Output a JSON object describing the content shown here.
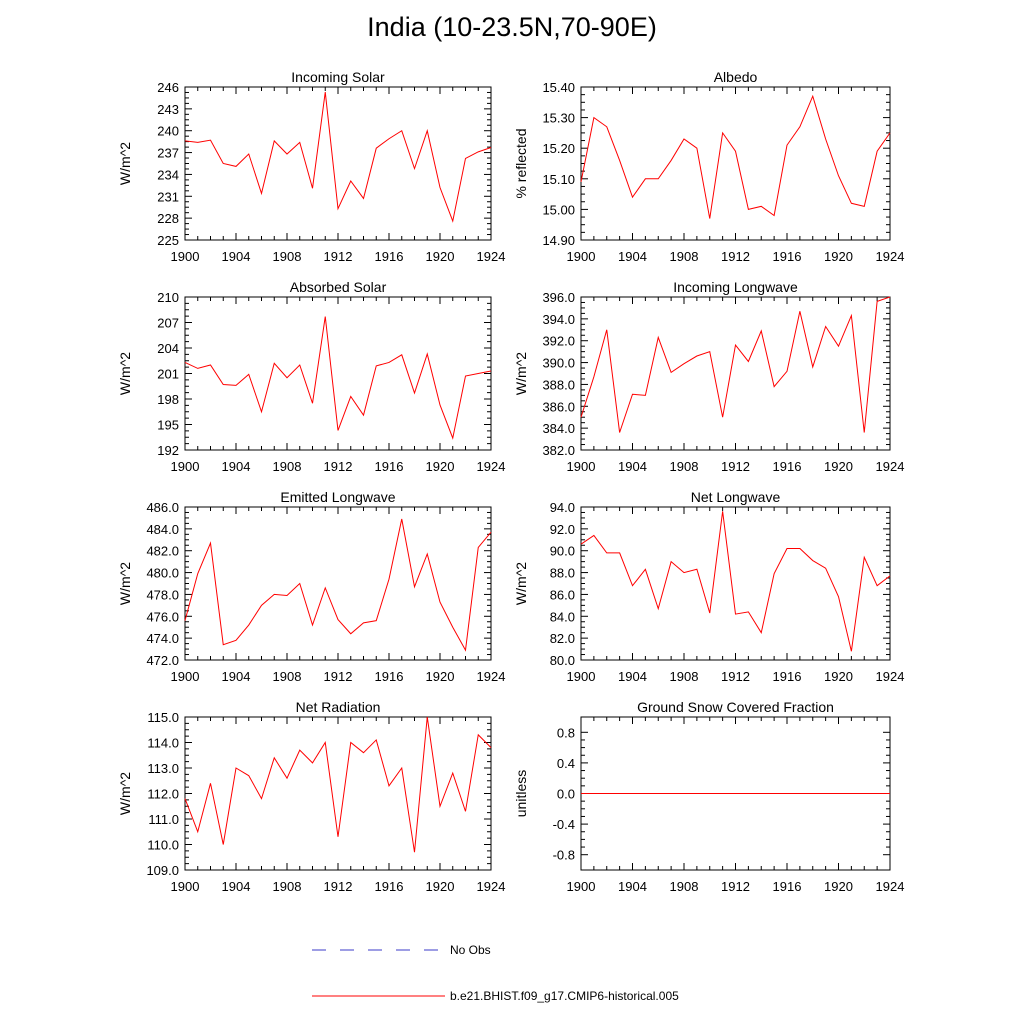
{
  "title": "India (10-23.5N,70-90E)",
  "colors": {
    "model": "#ff0000",
    "obs": "#3b3bc8",
    "axis": "#000000"
  },
  "legend": {
    "obs_label": "No Obs",
    "model_label": "b.e21.BHIST.f09_g17.CMIP6-historical.005"
  },
  "chart_data": [
    {
      "type": "line",
      "title": "Incoming Solar",
      "ylabel": "W/m^2",
      "xlim": [
        1900,
        1924
      ],
      "ylim": [
        225,
        246
      ],
      "xticks": [
        1900,
        1904,
        1908,
        1912,
        1916,
        1920,
        1924
      ],
      "xtick_labels": [
        "1900",
        "1904",
        "1908",
        "1912",
        "1916",
        "1920",
        "1924"
      ],
      "yticks": [
        225,
        228,
        231,
        234,
        237,
        240,
        243,
        246
      ],
      "ytick_labels": [
        "225",
        "228",
        "231",
        "234",
        "237",
        "240",
        "243",
        "246"
      ],
      "series": [
        {
          "name": "b.e21.BHIST.f09_g17.CMIP6-historical.005",
          "x": [
            1900,
            1901,
            1902,
            1903,
            1904,
            1905,
            1906,
            1907,
            1908,
            1909,
            1910,
            1911,
            1912,
            1913,
            1914,
            1915,
            1916,
            1917,
            1918,
            1919,
            1920,
            1921,
            1922,
            1923,
            1924
          ],
          "y": [
            238.6,
            238.4,
            238.7,
            235.5,
            235.1,
            236.8,
            231.4,
            238.6,
            236.8,
            238.4,
            232.1,
            245.3,
            229.3,
            233.1,
            230.7,
            237.6,
            238.9,
            240.0,
            234.8,
            240.0,
            232.2,
            227.6,
            236.2,
            237.1,
            237.7
          ]
        }
      ]
    },
    {
      "type": "line",
      "title": "Albedo",
      "ylabel": "% reflected",
      "xlim": [
        1900,
        1924
      ],
      "ylim": [
        14.9,
        15.4
      ],
      "xticks": [
        1900,
        1904,
        1908,
        1912,
        1916,
        1920,
        1924
      ],
      "xtick_labels": [
        "1900",
        "1904",
        "1908",
        "1912",
        "1916",
        "1920",
        "1924"
      ],
      "yticks": [
        14.9,
        15.0,
        15.1,
        15.2,
        15.3,
        15.4
      ],
      "ytick_labels": [
        "14.90",
        "15.00",
        "15.10",
        "15.20",
        "15.30",
        "15.40"
      ],
      "series": [
        {
          "name": "b.e21.BHIST.f09_g17.CMIP6-historical.005",
          "x": [
            1900,
            1901,
            1902,
            1903,
            1904,
            1905,
            1906,
            1907,
            1908,
            1909,
            1910,
            1911,
            1912,
            1913,
            1914,
            1915,
            1916,
            1917,
            1918,
            1919,
            1920,
            1921,
            1922,
            1923,
            1924
          ],
          "y": [
            15.09,
            15.3,
            15.27,
            15.16,
            15.04,
            15.1,
            15.1,
            15.16,
            15.23,
            15.2,
            14.97,
            15.25,
            15.19,
            15.0,
            15.01,
            14.98,
            15.21,
            15.27,
            15.37,
            15.23,
            15.11,
            15.02,
            15.01,
            15.19,
            15.25
          ]
        }
      ]
    },
    {
      "type": "line",
      "title": "Absorbed Solar",
      "ylabel": "W/m^2",
      "xlim": [
        1900,
        1924
      ],
      "ylim": [
        192,
        210
      ],
      "xticks": [
        1900,
        1904,
        1908,
        1912,
        1916,
        1920,
        1924
      ],
      "xtick_labels": [
        "1900",
        "1904",
        "1908",
        "1912",
        "1916",
        "1920",
        "1924"
      ],
      "yticks": [
        192,
        195,
        198,
        201,
        204,
        207,
        210
      ],
      "ytick_labels": [
        "192",
        "195",
        "198",
        "201",
        "204",
        "207",
        "210"
      ],
      "series": [
        {
          "name": "b.e21.BHIST.f09_g17.CMIP6-historical.005",
          "x": [
            1900,
            1901,
            1902,
            1903,
            1904,
            1905,
            1906,
            1907,
            1908,
            1909,
            1910,
            1911,
            1912,
            1913,
            1914,
            1915,
            1916,
            1917,
            1918,
            1919,
            1920,
            1921,
            1922,
            1923,
            1924
          ],
          "y": [
            202.3,
            201.6,
            202.0,
            199.7,
            199.6,
            200.9,
            196.5,
            202.2,
            200.5,
            202.0,
            197.5,
            207.7,
            194.3,
            198.3,
            196.1,
            201.9,
            202.3,
            203.2,
            198.7,
            203.3,
            197.3,
            193.4,
            200.7,
            201.0,
            201.3
          ]
        }
      ]
    },
    {
      "type": "line",
      "title": "Incoming Longwave",
      "ylabel": "W/m^2",
      "xlim": [
        1900,
        1924
      ],
      "ylim": [
        382,
        396
      ],
      "xticks": [
        1900,
        1904,
        1908,
        1912,
        1916,
        1920,
        1924
      ],
      "xtick_labels": [
        "1900",
        "1904",
        "1908",
        "1912",
        "1916",
        "1920",
        "1924"
      ],
      "yticks": [
        382,
        384,
        386,
        388,
        390,
        392,
        394,
        396
      ],
      "ytick_labels": [
        "382.0",
        "384.0",
        "386.0",
        "388.0",
        "390.0",
        "392.0",
        "394.0",
        "396.0"
      ],
      "series": [
        {
          "name": "b.e21.BHIST.f09_g17.CMIP6-historical.005",
          "x": [
            1900,
            1901,
            1902,
            1903,
            1904,
            1905,
            1906,
            1907,
            1908,
            1909,
            1910,
            1911,
            1912,
            1913,
            1914,
            1915,
            1916,
            1917,
            1918,
            1919,
            1920,
            1921,
            1922,
            1923,
            1924
          ],
          "y": [
            385.0,
            388.7,
            393.0,
            383.6,
            387.1,
            387.0,
            392.3,
            389.1,
            389.9,
            390.6,
            391.0,
            385.0,
            391.6,
            390.1,
            392.9,
            387.8,
            389.2,
            394.7,
            389.6,
            393.3,
            391.5,
            394.3,
            383.6,
            395.6,
            396.0
          ]
        }
      ]
    },
    {
      "type": "line",
      "title": "Emitted Longwave",
      "ylabel": "W/m^2",
      "xlim": [
        1900,
        1924
      ],
      "ylim": [
        472,
        486
      ],
      "xticks": [
        1900,
        1904,
        1908,
        1912,
        1916,
        1920,
        1924
      ],
      "xtick_labels": [
        "1900",
        "1904",
        "1908",
        "1912",
        "1916",
        "1920",
        "1924"
      ],
      "yticks": [
        472,
        474,
        476,
        478,
        480,
        482,
        484,
        486
      ],
      "ytick_labels": [
        "472.0",
        "474.0",
        "476.0",
        "478.0",
        "480.0",
        "482.0",
        "484.0",
        "486.0"
      ],
      "series": [
        {
          "name": "b.e21.BHIST.f09_g17.CMIP6-historical.005",
          "x": [
            1900,
            1901,
            1902,
            1903,
            1904,
            1905,
            1906,
            1907,
            1908,
            1909,
            1910,
            1911,
            1912,
            1913,
            1914,
            1915,
            1916,
            1917,
            1918,
            1919,
            1920,
            1921,
            1922,
            1923,
            1924
          ],
          "y": [
            475.6,
            479.9,
            482.7,
            473.4,
            473.8,
            475.2,
            477.0,
            478.0,
            477.9,
            479.0,
            475.2,
            478.6,
            475.7,
            474.4,
            475.4,
            475.6,
            479.4,
            484.9,
            478.7,
            481.7,
            477.3,
            475.0,
            472.9,
            482.3,
            483.7
          ]
        }
      ]
    },
    {
      "type": "line",
      "title": "Net Longwave",
      "ylabel": "W/m^2",
      "xlim": [
        1900,
        1924
      ],
      "ylim": [
        80,
        94
      ],
      "xticks": [
        1900,
        1904,
        1908,
        1912,
        1916,
        1920,
        1924
      ],
      "xtick_labels": [
        "1900",
        "1904",
        "1908",
        "1912",
        "1916",
        "1920",
        "1924"
      ],
      "yticks": [
        80,
        82,
        84,
        86,
        88,
        90,
        92,
        94
      ],
      "ytick_labels": [
        "80.0",
        "82.0",
        "84.0",
        "86.0",
        "88.0",
        "90.0",
        "92.0",
        "94.0"
      ],
      "series": [
        {
          "name": "b.e21.BHIST.f09_g17.CMIP6-historical.005",
          "x": [
            1900,
            1901,
            1902,
            1903,
            1904,
            1905,
            1906,
            1907,
            1908,
            1909,
            1910,
            1911,
            1912,
            1913,
            1914,
            1915,
            1916,
            1917,
            1918,
            1919,
            1920,
            1921,
            1922,
            1923,
            1924
          ],
          "y": [
            90.6,
            91.4,
            89.8,
            89.8,
            86.8,
            88.3,
            84.7,
            89.0,
            88.0,
            88.3,
            84.3,
            93.6,
            84.2,
            84.4,
            82.5,
            87.9,
            90.2,
            90.2,
            89.1,
            88.4,
            85.8,
            80.8,
            89.4,
            86.8,
            87.7
          ]
        }
      ]
    },
    {
      "type": "line",
      "title": "Net Radiation",
      "ylabel": "W/m^2",
      "xlim": [
        1900,
        1924
      ],
      "ylim": [
        109,
        115
      ],
      "xticks": [
        1900,
        1904,
        1908,
        1912,
        1916,
        1920,
        1924
      ],
      "xtick_labels": [
        "1900",
        "1904",
        "1908",
        "1912",
        "1916",
        "1920",
        "1924"
      ],
      "yticks": [
        109,
        110,
        111,
        112,
        113,
        114,
        115
      ],
      "ytick_labels": [
        "109.0",
        "110.0",
        "111.0",
        "112.0",
        "113.0",
        "114.0",
        "115.0"
      ],
      "series": [
        {
          "name": "b.e21.BHIST.f09_g17.CMIP6-historical.005",
          "x": [
            1900,
            1901,
            1902,
            1903,
            1904,
            1905,
            1906,
            1907,
            1908,
            1909,
            1910,
            1911,
            1912,
            1913,
            1914,
            1915,
            1916,
            1917,
            1918,
            1919,
            1920,
            1921,
            1922,
            1923,
            1924
          ],
          "y": [
            111.8,
            110.5,
            112.4,
            110.0,
            113.0,
            112.7,
            111.8,
            113.4,
            112.6,
            113.7,
            113.2,
            114.0,
            110.3,
            114.0,
            113.6,
            114.1,
            112.3,
            113.0,
            109.7,
            115.0,
            111.5,
            112.8,
            111.3,
            114.3,
            113.8
          ]
        }
      ]
    },
    {
      "type": "line",
      "title": "Ground Snow Covered Fraction",
      "ylabel": "unitless",
      "xlim": [
        1900,
        1924
      ],
      "ylim": [
        -1.0,
        1.0
      ],
      "xticks": [
        1900,
        1904,
        1908,
        1912,
        1916,
        1920,
        1924
      ],
      "xtick_labels": [
        "1900",
        "1904",
        "1908",
        "1912",
        "1916",
        "1920",
        "1924"
      ],
      "yticks": [
        -0.8,
        -0.4,
        0.0,
        0.4,
        0.8
      ],
      "ytick_labels": [
        "-0.8",
        "-0.4",
        "0.0",
        "0.4",
        "0.8"
      ],
      "series": [
        {
          "name": "b.e21.BHIST.f09_g17.CMIP6-historical.005",
          "x": [
            1900,
            1901,
            1902,
            1903,
            1904,
            1905,
            1906,
            1907,
            1908,
            1909,
            1910,
            1911,
            1912,
            1913,
            1914,
            1915,
            1916,
            1917,
            1918,
            1919,
            1920,
            1921,
            1922,
            1923,
            1924
          ],
          "y": [
            0,
            0,
            0,
            0,
            0,
            0,
            0,
            0,
            0,
            0,
            0,
            0,
            0,
            0,
            0,
            0,
            0,
            0,
            0,
            0,
            0,
            0,
            0,
            0,
            0
          ]
        }
      ]
    }
  ]
}
